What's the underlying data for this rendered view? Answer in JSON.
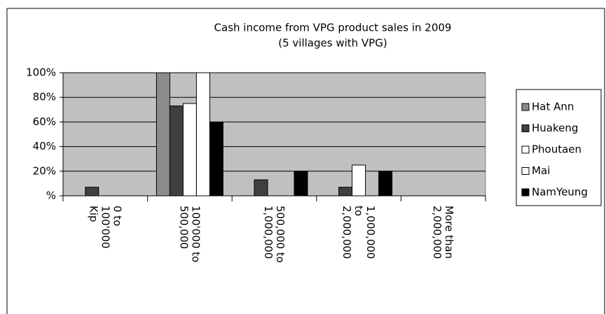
{
  "chart_data": {
    "type": "bar",
    "title": "Cash income from VPG product sales in 2009",
    "subtitle": "(5 villages with VPG)",
    "categories": [
      [
        "0 to",
        "100'000",
        "Kip"
      ],
      [
        "100'000 to",
        "500,000"
      ],
      [
        "500,000 to",
        "1,000,000"
      ],
      [
        "1,000,000",
        "to",
        "2,000,000"
      ],
      [
        "More than",
        "2,000,000"
      ]
    ],
    "series": [
      {
        "name": "Hat Ann",
        "color": "#8c8c8c",
        "values": [
          0,
          100,
          0,
          0,
          0
        ]
      },
      {
        "name": "Huakeng",
        "color": "#404040",
        "values": [
          7,
          73,
          13,
          7,
          0
        ]
      },
      {
        "name": "Phoutaen",
        "color": "#ffffff",
        "values": [
          0,
          75,
          0,
          25,
          0
        ]
      },
      {
        "name": "Mai",
        "color": "#ffffff",
        "values": [
          0,
          100,
          0,
          0,
          0
        ]
      },
      {
        "name": "NamYeung",
        "color": "#000000",
        "values": [
          0,
          60,
          20,
          20,
          0
        ]
      }
    ],
    "ylim": [
      0,
      100
    ],
    "yticks": [
      {
        "value": 0,
        "label": "%"
      },
      {
        "value": 20,
        "label": "20%"
      },
      {
        "value": 40,
        "label": "40%"
      },
      {
        "value": 60,
        "label": "60%"
      },
      {
        "value": 80,
        "label": "80%"
      },
      {
        "value": 100,
        "label": "100%"
      }
    ],
    "grid": true,
    "plot_color": "#c0c0c0",
    "legend": "right"
  }
}
